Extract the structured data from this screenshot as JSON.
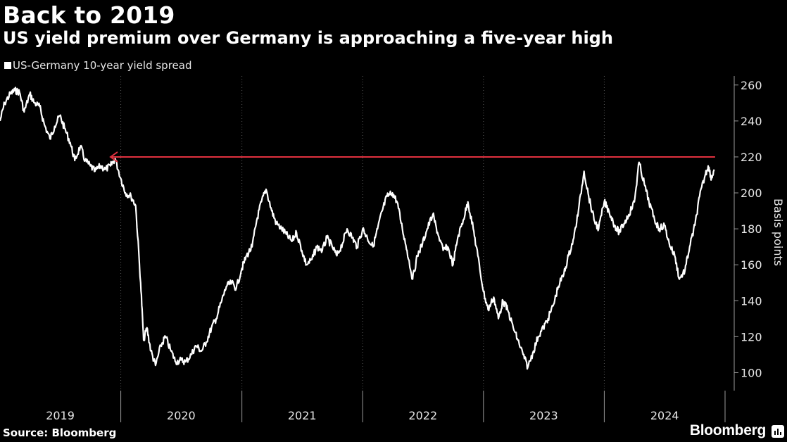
{
  "header": {
    "title": "Back to 2019",
    "subtitle": "US yield premium over Germany is approaching a five-year high"
  },
  "footer": {
    "source": "Source: Bloomberg",
    "brand": "Bloomberg"
  },
  "colors": {
    "background": "#000000",
    "series": "#ffffff",
    "annotation": "#e0313f",
    "grid": "#5a5a5a"
  },
  "chart_data": {
    "type": "line",
    "title": "Back to 2019",
    "subtitle": "US yield premium over Germany is approaching a five-year high",
    "ylabel": "Basis points",
    "xlabel": "",
    "ylim": [
      90,
      265
    ],
    "yticks": [
      100,
      120,
      140,
      160,
      180,
      200,
      220,
      240,
      260
    ],
    "xlim": [
      "2019-01-01",
      "2024-12-31"
    ],
    "xtick_labels": [
      "2019",
      "2020",
      "2021",
      "2022",
      "2023",
      "2024"
    ],
    "grid": "vertical dotted",
    "legend": "top-left",
    "series": [
      {
        "name": "US-Germany 10-year yield spread",
        "points": [
          [
            "2019-01-01",
            240
          ],
          [
            "2019-01-15",
            250
          ],
          [
            "2019-02-01",
            255
          ],
          [
            "2019-02-15",
            257
          ],
          [
            "2019-03-01",
            256
          ],
          [
            "2019-03-15",
            245
          ],
          [
            "2019-04-01",
            255
          ],
          [
            "2019-04-15",
            250
          ],
          [
            "2019-05-01",
            248
          ],
          [
            "2019-05-15",
            238
          ],
          [
            "2019-06-01",
            230
          ],
          [
            "2019-06-15",
            237
          ],
          [
            "2019-07-01",
            243
          ],
          [
            "2019-07-15",
            236
          ],
          [
            "2019-08-01",
            228
          ],
          [
            "2019-08-15",
            218
          ],
          [
            "2019-09-01",
            226
          ],
          [
            "2019-09-15",
            218
          ],
          [
            "2019-10-01",
            215
          ],
          [
            "2019-10-15",
            212
          ],
          [
            "2019-11-01",
            215
          ],
          [
            "2019-11-15",
            213
          ],
          [
            "2019-12-01",
            215
          ],
          [
            "2019-12-15",
            219
          ],
          [
            "2020-01-01",
            208
          ],
          [
            "2020-01-15",
            200
          ],
          [
            "2020-02-01",
            198
          ],
          [
            "2020-02-15",
            193
          ],
          [
            "2020-03-01",
            150
          ],
          [
            "2020-03-10",
            118
          ],
          [
            "2020-03-20",
            125
          ],
          [
            "2020-04-01",
            112
          ],
          [
            "2020-04-15",
            104
          ],
          [
            "2020-05-01",
            115
          ],
          [
            "2020-05-15",
            120
          ],
          [
            "2020-06-01",
            112
          ],
          [
            "2020-06-15",
            106
          ],
          [
            "2020-07-01",
            107
          ],
          [
            "2020-07-15",
            106
          ],
          [
            "2020-08-01",
            110
          ],
          [
            "2020-08-15",
            115
          ],
          [
            "2020-09-01",
            112
          ],
          [
            "2020-09-15",
            117
          ],
          [
            "2020-10-01",
            125
          ],
          [
            "2020-10-15",
            130
          ],
          [
            "2020-11-01",
            140
          ],
          [
            "2020-11-15",
            148
          ],
          [
            "2020-12-01",
            150
          ],
          [
            "2020-12-15",
            147
          ],
          [
            "2021-01-01",
            158
          ],
          [
            "2021-01-15",
            165
          ],
          [
            "2021-02-01",
            170
          ],
          [
            "2021-02-15",
            185
          ],
          [
            "2021-03-01",
            195
          ],
          [
            "2021-03-15",
            202
          ],
          [
            "2021-04-01",
            190
          ],
          [
            "2021-04-15",
            183
          ],
          [
            "2021-05-01",
            180
          ],
          [
            "2021-05-15",
            177
          ],
          [
            "2021-06-01",
            173
          ],
          [
            "2021-06-15",
            178
          ],
          [
            "2021-07-01",
            168
          ],
          [
            "2021-07-15",
            160
          ],
          [
            "2021-08-01",
            163
          ],
          [
            "2021-08-15",
            170
          ],
          [
            "2021-09-01",
            168
          ],
          [
            "2021-09-15",
            175
          ],
          [
            "2021-10-01",
            170
          ],
          [
            "2021-10-15",
            165
          ],
          [
            "2021-11-01",
            172
          ],
          [
            "2021-11-15",
            180
          ],
          [
            "2021-12-01",
            175
          ],
          [
            "2021-12-15",
            170
          ],
          [
            "2022-01-01",
            180
          ],
          [
            "2022-01-15",
            175
          ],
          [
            "2022-02-01",
            170
          ],
          [
            "2022-02-15",
            180
          ],
          [
            "2022-03-01",
            190
          ],
          [
            "2022-03-15",
            198
          ],
          [
            "2022-04-01",
            200
          ],
          [
            "2022-04-15",
            195
          ],
          [
            "2022-05-01",
            180
          ],
          [
            "2022-05-15",
            168
          ],
          [
            "2022-06-01",
            152
          ],
          [
            "2022-06-15",
            165
          ],
          [
            "2022-07-01",
            172
          ],
          [
            "2022-07-15",
            180
          ],
          [
            "2022-08-01",
            188
          ],
          [
            "2022-08-15",
            178
          ],
          [
            "2022-09-01",
            168
          ],
          [
            "2022-09-15",
            170
          ],
          [
            "2022-10-01",
            160
          ],
          [
            "2022-10-15",
            175
          ],
          [
            "2022-11-01",
            185
          ],
          [
            "2022-11-15",
            195
          ],
          [
            "2022-12-01",
            180
          ],
          [
            "2022-12-15",
            165
          ],
          [
            "2023-01-01",
            145
          ],
          [
            "2023-01-15",
            135
          ],
          [
            "2023-02-01",
            142
          ],
          [
            "2023-02-15",
            130
          ],
          [
            "2023-03-01",
            140
          ],
          [
            "2023-03-15",
            135
          ],
          [
            "2023-04-01",
            125
          ],
          [
            "2023-04-15",
            118
          ],
          [
            "2023-05-01",
            110
          ],
          [
            "2023-05-15",
            103
          ],
          [
            "2023-06-01",
            112
          ],
          [
            "2023-06-15",
            120
          ],
          [
            "2023-07-01",
            125
          ],
          [
            "2023-07-15",
            130
          ],
          [
            "2023-08-01",
            138
          ],
          [
            "2023-08-15",
            148
          ],
          [
            "2023-09-01",
            155
          ],
          [
            "2023-09-15",
            165
          ],
          [
            "2023-10-01",
            175
          ],
          [
            "2023-10-15",
            190
          ],
          [
            "2023-11-01",
            212
          ],
          [
            "2023-11-15",
            198
          ],
          [
            "2023-12-01",
            185
          ],
          [
            "2023-12-15",
            180
          ],
          [
            "2024-01-01",
            195
          ],
          [
            "2024-01-15",
            190
          ],
          [
            "2024-02-01",
            182
          ],
          [
            "2024-02-15",
            178
          ],
          [
            "2024-03-01",
            183
          ],
          [
            "2024-03-15",
            188
          ],
          [
            "2024-04-01",
            195
          ],
          [
            "2024-04-15",
            217
          ],
          [
            "2024-05-01",
            205
          ],
          [
            "2024-05-15",
            195
          ],
          [
            "2024-06-01",
            185
          ],
          [
            "2024-06-15",
            180
          ],
          [
            "2024-07-01",
            182
          ],
          [
            "2024-07-15",
            172
          ],
          [
            "2024-08-01",
            165
          ],
          [
            "2024-08-15",
            152
          ],
          [
            "2024-09-01",
            157
          ],
          [
            "2024-09-15",
            170
          ],
          [
            "2024-10-01",
            182
          ],
          [
            "2024-10-15",
            198
          ],
          [
            "2024-11-01",
            210
          ],
          [
            "2024-11-10",
            215
          ],
          [
            "2024-11-20",
            208
          ],
          [
            "2024-11-28",
            213
          ]
        ]
      }
    ],
    "annotations": [
      {
        "type": "arrow",
        "from": [
          "2024-12-01",
          220
        ],
        "to": [
          "2019-12-01",
          220
        ],
        "color": "#e0313f"
      }
    ]
  }
}
